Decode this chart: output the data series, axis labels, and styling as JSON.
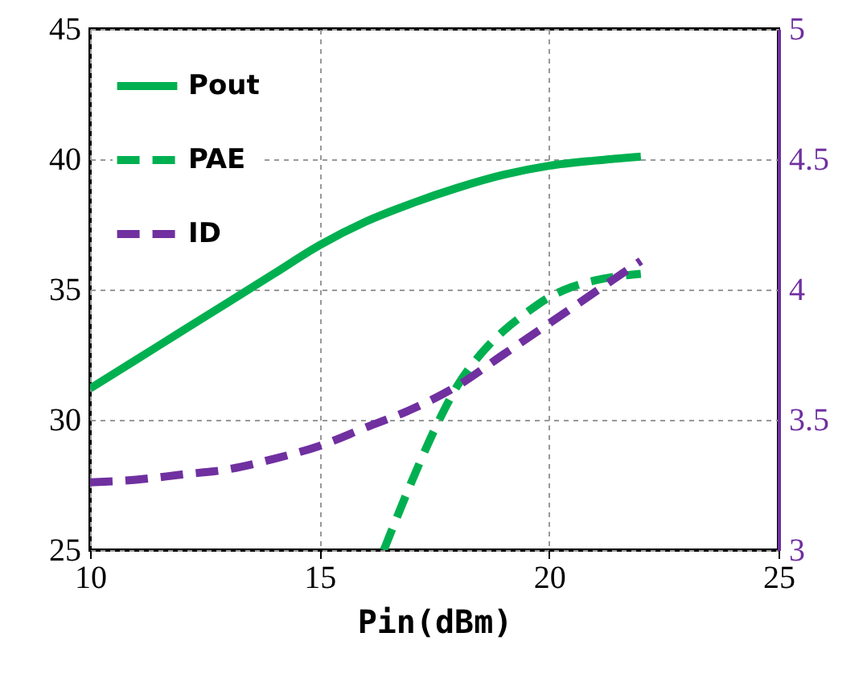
{
  "chart_data": {
    "type": "line",
    "xlabel": "Pin(dBm)",
    "xlim": [
      10,
      25
    ],
    "xticks": [
      10,
      15,
      20,
      25
    ],
    "ylim": [
      25,
      45
    ],
    "yticks": [
      25,
      30,
      35,
      40,
      45
    ],
    "y2lim": [
      3,
      5
    ],
    "y2ticks": [
      3,
      3.5,
      4,
      4.5,
      5
    ],
    "grid": true,
    "legend": "top left",
    "series": [
      {
        "name": "Pout",
        "color": "#00b050",
        "line_style": "solid",
        "x": [
          10,
          11,
          12,
          13,
          14,
          15,
          16,
          17,
          18,
          19,
          20,
          21,
          22
        ],
        "values": [
          31.2,
          32.3,
          33.4,
          34.5,
          35.6,
          36.7,
          37.6,
          38.3,
          38.9,
          39.4,
          39.75,
          39.95,
          40.1
        ]
      },
      {
        "name": "PAE",
        "color": "#00b050",
        "line_style": "dashed",
        "x": [
          16.4,
          17,
          17.5,
          18,
          18.5,
          19,
          19.5,
          20,
          20.5,
          21,
          22
        ],
        "values": [
          25,
          27.6,
          29.6,
          31.3,
          32.5,
          33.4,
          34.1,
          34.7,
          35.1,
          35.35,
          35.6
        ]
      },
      {
        "name": "ID",
        "color": "#7030a0",
        "line_style": "dashed",
        "axis": "y2",
        "x": [
          10,
          11,
          12,
          13,
          14,
          15,
          16,
          17,
          18,
          19,
          20,
          21,
          22
        ],
        "values": [
          3.26,
          3.27,
          3.29,
          3.31,
          3.35,
          3.4,
          3.47,
          3.54,
          3.63,
          3.75,
          3.87,
          3.99,
          4.11
        ]
      }
    ]
  }
}
